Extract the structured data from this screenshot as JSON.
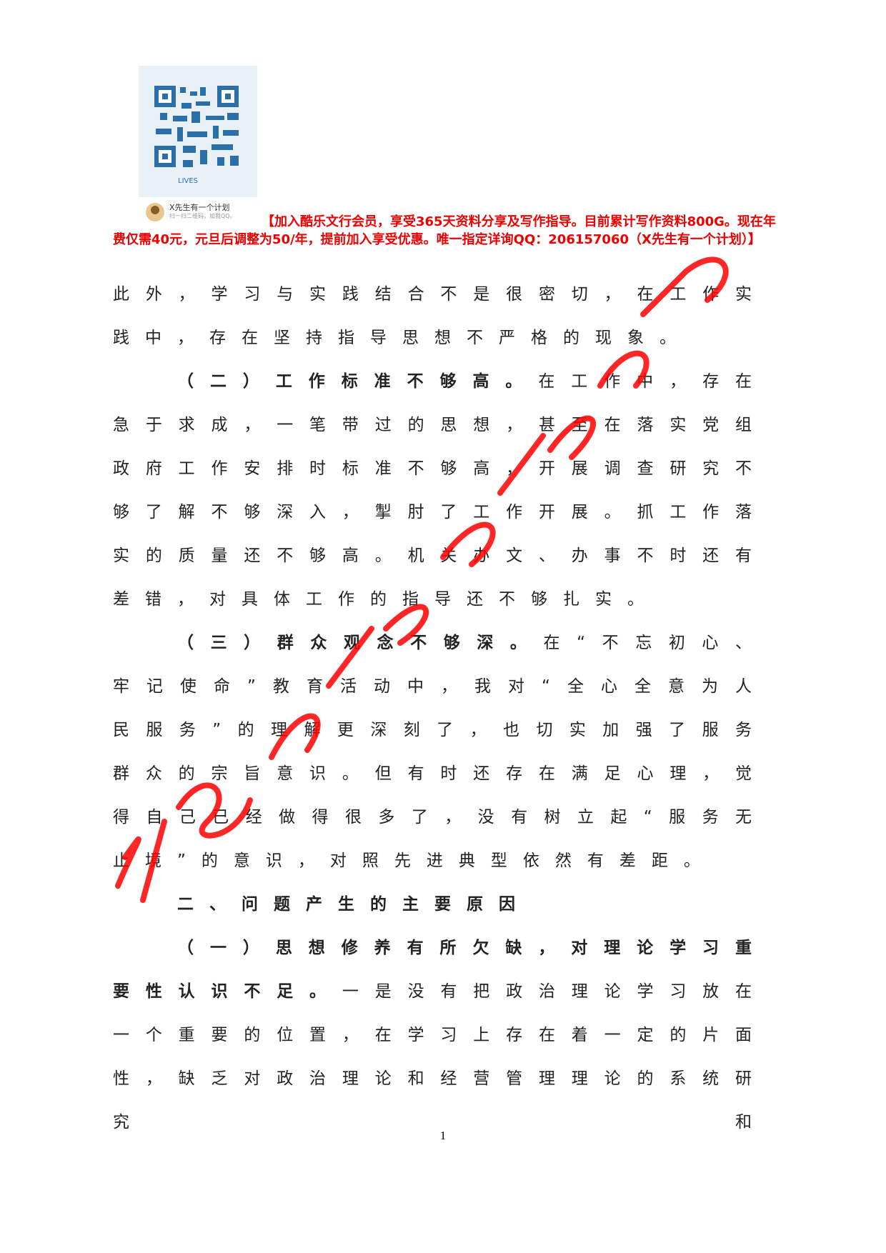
{
  "header": {
    "qr_label": "LIVES",
    "qr_caption_name": "X先生有一个计划",
    "qr_caption_sub": "扫一扫二维码，加我QQ。",
    "notice": "【加入酷乐文行会员，享受365天资料分享及写作指导。目前累计写作资料800G。现在年费仅需40元，元旦后调整为50/年，提前加入享受优惠。唯一指定详询QQ：206157060（X先生有一个计划）】"
  },
  "paragraphs": [
    {
      "text": "此外，学习与实践结合不是很密切，在工作实践中，存在坚持指导思想不严格的现象。"
    },
    {
      "lead": "（二）工作标准不够高。",
      "text": "在工作中，存在急于求成，一笔带过的思想，甚至在落实党组政府工作安排时标准不够高，开展调查研究不够了解不够深入，掣肘了工作开展。抓工作落实的质量还不够高。机关办文、办事不时还有差错，对具体工作的指导还不够扎实。"
    },
    {
      "lead": "（三）群众观念不够深。",
      "text": "在“不忘初心、牢记使命”教育活动中，我对“全心全意为人民服务”的理解更深刻了，也切实加强了服务群众的宗旨意识。但有时还存在满足心理，觉得自己已经做得很多了，没有树立起“服务无止境”的意识，对照先进典型依然有差距。"
    },
    {
      "lead": "二、问题产生的主要原因"
    },
    {
      "lead": "（一）思想修养有所欠缺，对理论学习重要性认识不足。",
      "text": "一是没有把政治理论学习放在一个重要的位置，在学习上存在着一定的片面性，缺乏对政治理论和经营管理理论的系统研究和"
    }
  ],
  "page_number": "1"
}
